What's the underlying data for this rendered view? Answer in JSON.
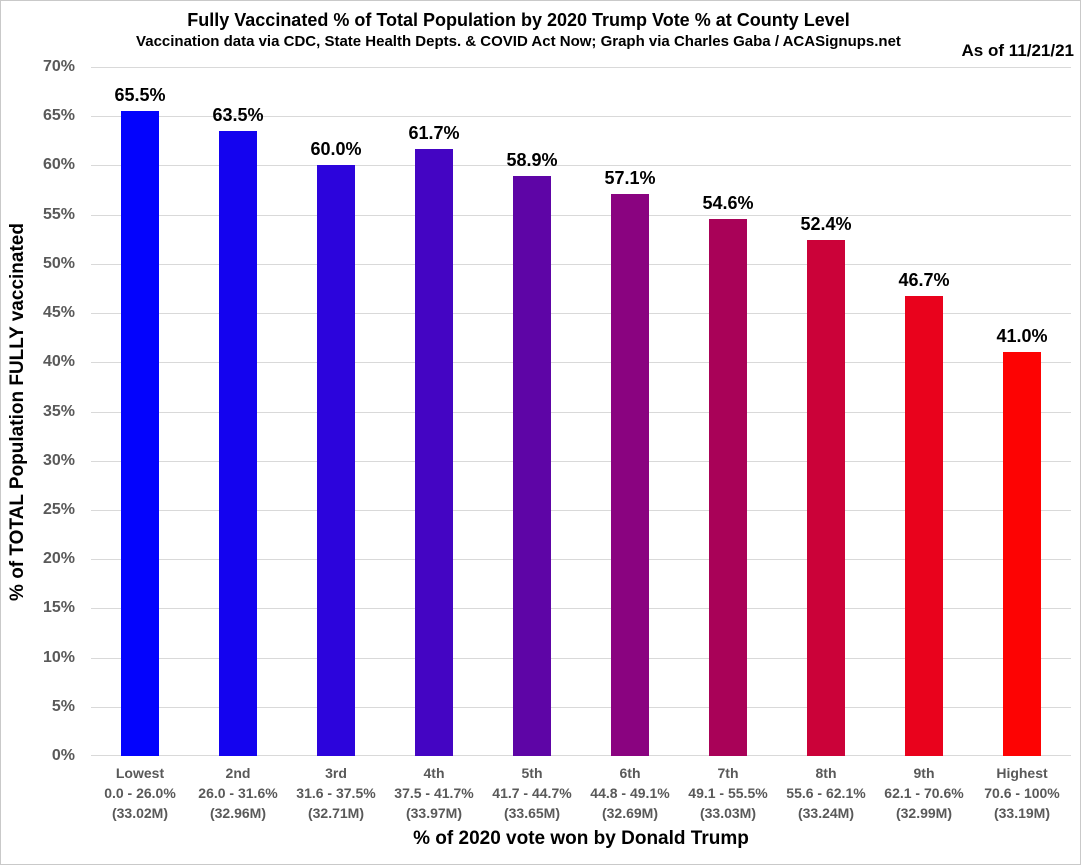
{
  "header": {
    "title": "Fully Vaccinated % of Total Population by 2020 Trump Vote % at County Level",
    "subtitle": "Vaccination data via CDC, State Health Depts. & COVID Act Now; Graph via Charles Gaba / ACASignups.net",
    "as_of": "As of 11/21/21"
  },
  "colors": {
    "axis_text": "#595959",
    "gridline": "#d9d9d9",
    "value_text": "#000000",
    "background": "#ffffff"
  },
  "chart_data": {
    "type": "bar",
    "title": "Fully Vaccinated % of Total Population by 2020 Trump Vote % at County Level",
    "subtitle": "Vaccination data via CDC, State Health Depts. & COVID Act Now; Graph via Charles Gaba / ACASignups.net",
    "as_of": "As of 11/21/21",
    "xlabel": "% of 2020 vote won by Donald Trump",
    "ylabel": "% of TOTAL Population FULLY vaccinated",
    "ylim": [
      0,
      70
    ],
    "ytick_step": 5,
    "ytick_labels": [
      "0%",
      "5%",
      "10%",
      "15%",
      "20%",
      "25%",
      "30%",
      "35%",
      "40%",
      "45%",
      "50%",
      "55%",
      "60%",
      "65%",
      "70%"
    ],
    "grid": true,
    "legend": false,
    "categories": [
      {
        "rank": "Lowest",
        "range": "0.0 - 26.0%",
        "population": "(33.02M)"
      },
      {
        "rank": "2nd",
        "range": "26.0 - 31.6%",
        "population": "(32.96M)"
      },
      {
        "rank": "3rd",
        "range": "31.6 - 37.5%",
        "population": "(32.71M)"
      },
      {
        "rank": "4th",
        "range": "37.5 - 41.7%",
        "population": "(33.97M)"
      },
      {
        "rank": "5th",
        "range": "41.7 - 44.7%",
        "population": "(33.65M)"
      },
      {
        "rank": "6th",
        "range": "44.8 - 49.1%",
        "population": "(32.69M)"
      },
      {
        "rank": "7th",
        "range": "49.1 - 55.5%",
        "population": "(33.03M)"
      },
      {
        "rank": "8th",
        "range": "55.6 - 62.1%",
        "population": "(33.24M)"
      },
      {
        "rank": "9th",
        "range": "62.1 - 70.6%",
        "population": "(32.99M)"
      },
      {
        "rank": "Highest",
        "range": "70.6 - 100%",
        "population": "(33.19M)"
      }
    ],
    "values": [
      65.5,
      63.5,
      60.0,
      61.7,
      58.9,
      57.1,
      54.6,
      52.4,
      46.7,
      41.0
    ],
    "value_labels": [
      "65.5%",
      "63.5%",
      "60.0%",
      "61.7%",
      "58.9%",
      "57.1%",
      "54.6%",
      "52.4%",
      "46.7%",
      "41.0%"
    ],
    "bar_colors": [
      "#0303fd",
      "#1403ef",
      "#2c04dc",
      "#4405c3",
      "#5e05a6",
      "#8a0380",
      "#a90258",
      "#cb0239",
      "#e9021c",
      "#fd0303"
    ]
  }
}
